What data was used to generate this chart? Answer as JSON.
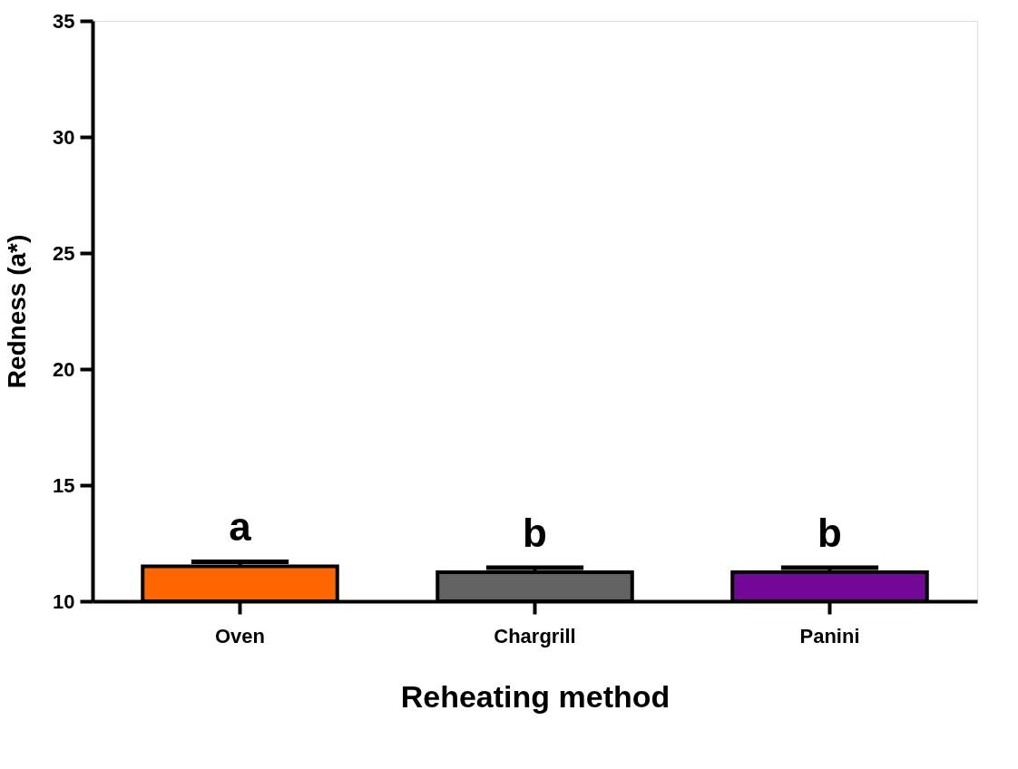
{
  "chart_data": {
    "type": "bar",
    "xlabel": "Reheating method",
    "ylabel": "Redness (a*)",
    "categories": [
      "Oven",
      "Chargrill",
      "Panini"
    ],
    "values": [
      11.5,
      11.25,
      11.25
    ],
    "colors": [
      "#ff6600",
      "#636363",
      "#730897"
    ],
    "errors": [
      [
        11.5,
        11.7
      ],
      [
        11.25,
        11.45
      ],
      [
        11.25,
        11.45
      ]
    ],
    "ylim": [
      10,
      35
    ],
    "yticks": [
      10,
      15,
      20,
      25,
      30,
      35
    ],
    "grid": false,
    "annotations": [
      "a",
      "b",
      "b"
    ]
  }
}
